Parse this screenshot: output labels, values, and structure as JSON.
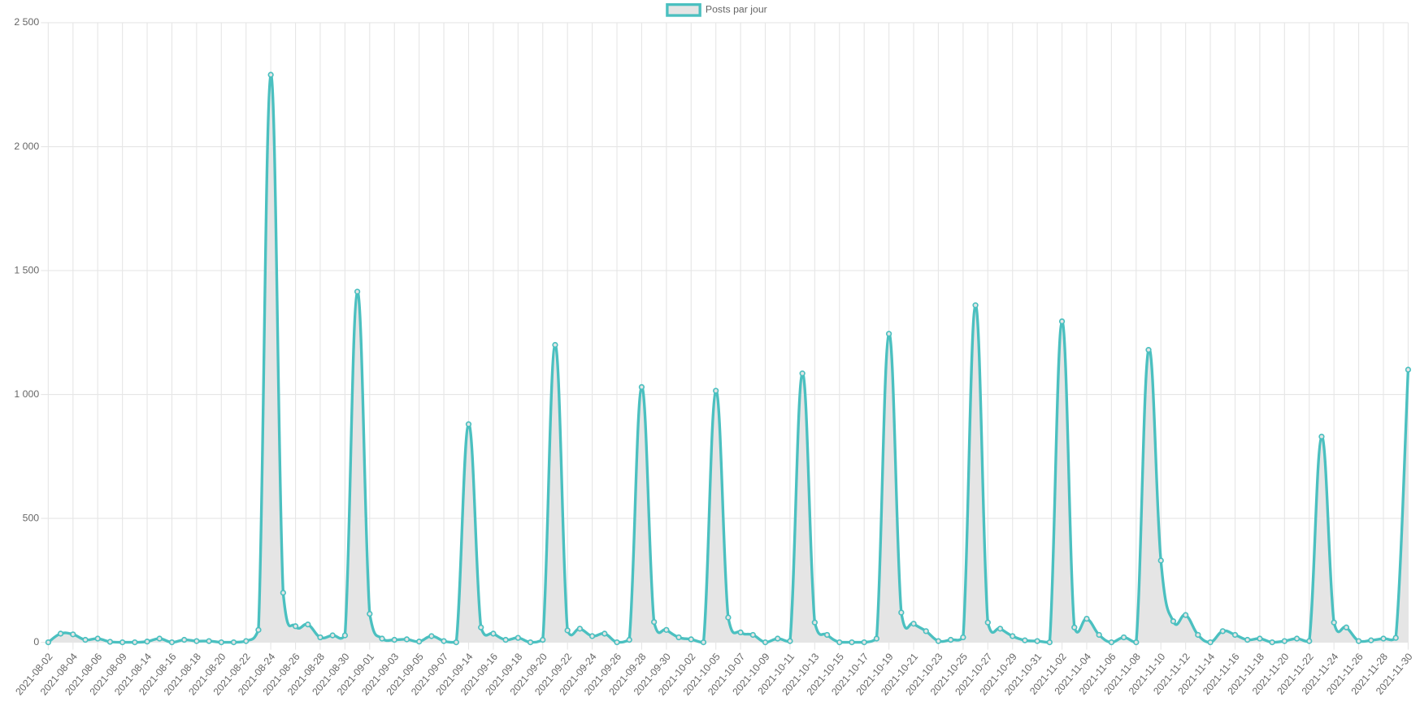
{
  "chart_data": {
    "type": "line",
    "legend_position": "top",
    "grid": true,
    "categories": [
      "2021-08-02",
      null,
      "2021-08-04",
      null,
      "2021-08-06",
      null,
      "2021-08-09",
      null,
      "2021-08-14",
      null,
      "2021-08-16",
      null,
      "2021-08-18",
      null,
      "2021-08-20",
      null,
      "2021-08-22",
      null,
      "2021-08-24",
      null,
      "2021-08-26",
      null,
      "2021-08-28",
      null,
      "2021-08-30",
      null,
      "2021-09-01",
      null,
      "2021-09-03",
      null,
      "2021-09-05",
      null,
      "2021-09-07",
      null,
      "2021-09-14",
      null,
      "2021-09-16",
      null,
      "2021-09-18",
      null,
      "2021-09-20",
      null,
      "2021-09-22",
      null,
      "2021-09-24",
      null,
      "2021-09-26",
      null,
      "2021-09-28",
      null,
      "2021-09-30",
      null,
      "2021-10-02",
      null,
      "2021-10-05",
      null,
      "2021-10-07",
      null,
      "2021-10-09",
      null,
      "2021-10-11",
      null,
      "2021-10-13",
      null,
      "2021-10-15",
      null,
      "2021-10-17",
      null,
      "2021-10-19",
      null,
      "2021-10-21",
      null,
      "2021-10-23",
      null,
      "2021-10-25",
      null,
      "2021-10-27",
      null,
      "2021-10-29",
      null,
      "2021-10-31",
      null,
      "2021-11-02",
      null,
      "2021-11-04",
      null,
      "2021-11-06",
      null,
      "2021-11-08",
      null,
      "2021-11-10",
      null,
      "2021-11-12",
      null,
      "2021-11-14",
      null,
      "2021-11-16",
      null,
      "2021-11-18",
      null,
      "2021-11-20",
      null,
      "2021-11-22",
      null,
      "2021-11-24",
      null,
      "2021-11-26",
      null,
      "2021-11-28",
      null,
      "2021-11-30"
    ],
    "series": [
      {
        "name": "Posts par jour",
        "color": "#4bc0c0",
        "fill": "#e5e5e5",
        "values": [
          0,
          35,
          32,
          10,
          15,
          2,
          0,
          0,
          3,
          15,
          0,
          10,
          5,
          5,
          0,
          0,
          5,
          50,
          2290,
          200,
          65,
          72,
          20,
          28,
          28,
          1415,
          115,
          15,
          10,
          12,
          3,
          25,
          5,
          0,
          880,
          60,
          35,
          10,
          18,
          0,
          10,
          1200,
          48,
          55,
          25,
          35,
          0,
          10,
          1030,
          82,
          50,
          20,
          12,
          0,
          1015,
          100,
          40,
          30,
          0,
          15,
          5,
          1085,
          80,
          30,
          0,
          0,
          0,
          15,
          1245,
          120,
          75,
          45,
          5,
          10,
          20,
          1360,
          80,
          55,
          25,
          8,
          5,
          0,
          1295,
          60,
          95,
          30,
          0,
          20,
          0,
          1180,
          330,
          85,
          110,
          30,
          0,
          45,
          30,
          10,
          15,
          0,
          5,
          15,
          5,
          830,
          80,
          60,
          5,
          8,
          15,
          18,
          1100
        ]
      }
    ],
    "ylim": [
      0,
      2500
    ],
    "yticks": [
      0,
      500,
      {
        "value": 1000,
        "label": "1 000"
      },
      {
        "value": 1500,
        "label": "1 500"
      },
      {
        "value": 2000,
        "label": "2 000"
      },
      {
        "value": 2500,
        "label": "2 500"
      }
    ]
  }
}
